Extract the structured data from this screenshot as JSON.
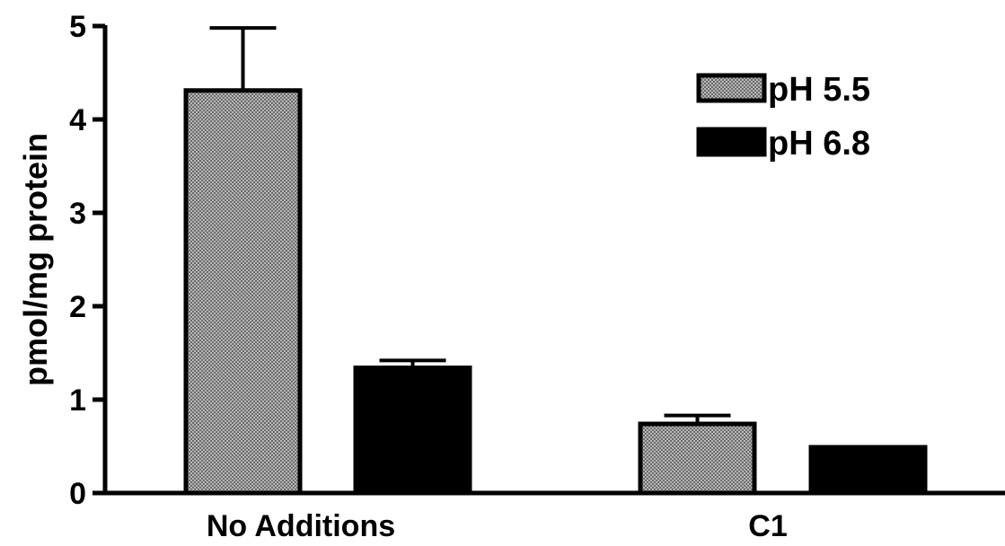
{
  "chart_data": {
    "type": "bar",
    "title": "",
    "xlabel": "",
    "ylabel": "pmol/mg protein",
    "ylim": [
      0,
      5
    ],
    "y_ticks": [
      "0",
      "1",
      "2",
      "3",
      "4",
      "5"
    ],
    "categories": [
      "No Additions",
      "C1"
    ],
    "series": [
      {
        "name": "pH 5.5",
        "values": [
          4.31,
          0.74
        ],
        "errors": [
          0.67,
          0.09
        ],
        "fill": "#a8a8a8",
        "pattern": "crosshatch"
      },
      {
        "name": "pH 6.8",
        "values": [
          1.34,
          0.49
        ],
        "errors": [
          0.08,
          0.0
        ],
        "fill": "#000000",
        "pattern": "solid"
      }
    ],
    "grid": false,
    "legend_position": "top-right",
    "colors": {
      "axis": "#000000",
      "bar_stroke": "#000000",
      "hatch_light": "#b4b4b4",
      "hatch_dark": "#6e6e6e"
    }
  }
}
